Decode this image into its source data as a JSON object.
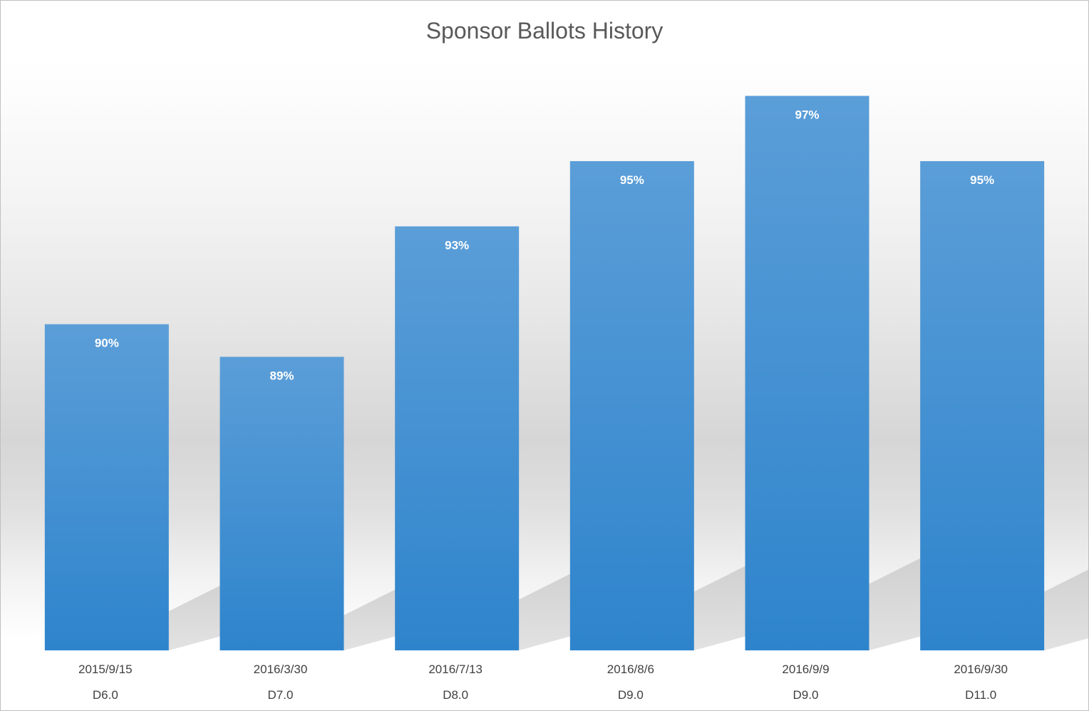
{
  "chart_data": {
    "type": "bar",
    "title": "Sponsor Ballots History",
    "xlabel": "",
    "ylabel": "",
    "categories": [
      [
        "2015/9/15",
        "D6.0"
      ],
      [
        "2016/3/30",
        "D7.0"
      ],
      [
        "2016/7/13",
        "D8.0"
      ],
      [
        "2016/8/6",
        "D9.0"
      ],
      [
        "2016/9/9",
        "D9.0"
      ],
      [
        "2016/9/30",
        "D11.0"
      ]
    ],
    "series": [
      {
        "values": [
          90,
          89,
          93,
          95,
          97,
          95
        ],
        "data_labels": [
          "90%",
          "89%",
          "93%",
          "95%",
          "97%",
          "95%"
        ],
        "color": "#5b9bd5"
      }
    ],
    "ylim": [
      80,
      99
    ],
    "grid": false,
    "legend": "none"
  }
}
